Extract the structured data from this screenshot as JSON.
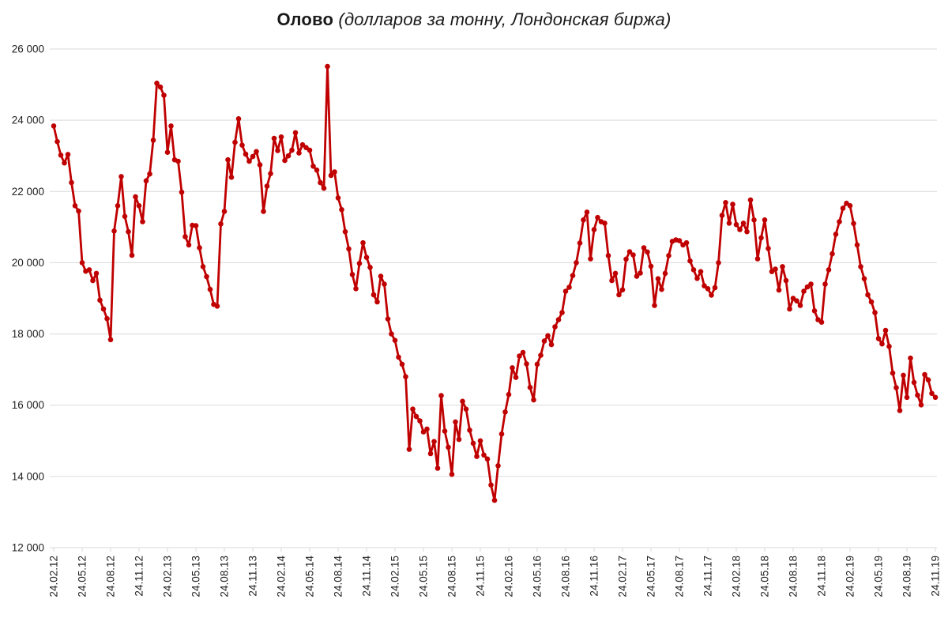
{
  "title": {
    "main": "Олово",
    "subtitle": " (долларов за тонну, Лондонская биржа)"
  },
  "chart_data": {
    "type": "line",
    "title": "Олово (долларов за тонну, Лондонская биржа)",
    "series": [
      {
        "name": "Олово",
        "color": "#C00000",
        "marker": "circle",
        "values": [
          23840,
          23400,
          23020,
          22800,
          23040,
          22250,
          21600,
          21450,
          20000,
          19760,
          19800,
          19500,
          19700,
          18950,
          18700,
          18430,
          17840,
          20890,
          21600,
          22420,
          21300,
          20870,
          20210,
          21850,
          21600,
          21150,
          22300,
          22490,
          23440,
          25040,
          24930,
          24700,
          23100,
          23840,
          22890,
          22850,
          21980,
          20730,
          20500,
          21050,
          21040,
          20420,
          19890,
          19610,
          19250,
          18830,
          18780,
          21090,
          21440,
          22890,
          22400,
          23380,
          24040,
          23300,
          23050,
          22850,
          22980,
          23120,
          22750,
          21440,
          22150,
          22500,
          23490,
          23150,
          23530,
          22870,
          23000,
          23160,
          23650,
          23080,
          23310,
          23230,
          23160,
          22710,
          22600,
          22250,
          22090,
          25510,
          22450,
          22550,
          21820,
          21490,
          20870,
          20390,
          19670,
          19270,
          19980,
          20560,
          20150,
          19870,
          19100,
          18900,
          19620,
          19400,
          18420,
          18000,
          17820,
          17350,
          17150,
          16800,
          14760,
          15890,
          15680,
          15560,
          15250,
          15330,
          14640,
          14980,
          14230,
          16270,
          15270,
          14820,
          14060,
          15530,
          15040,
          16110,
          15890,
          15300,
          14930,
          14560,
          15000,
          14600,
          14490,
          13760,
          13330,
          14300,
          15190,
          15810,
          16300,
          17050,
          16780,
          17380,
          17480,
          17160,
          16500,
          16150,
          17150,
          17400,
          17800,
          17950,
          17700,
          18200,
          18400,
          18600,
          19200,
          19310,
          19640,
          20000,
          20550,
          21200,
          21420,
          20110,
          20930,
          21270,
          21150,
          21110,
          20200,
          19500,
          19700,
          19100,
          19240,
          20100,
          20310,
          20220,
          19620,
          19710,
          20420,
          20300,
          19900,
          18800,
          19550,
          19250,
          19700,
          20200,
          20600,
          20640,
          20620,
          20500,
          20560,
          20050,
          19800,
          19560,
          19750,
          19350,
          19270,
          19090,
          19300,
          20000,
          21330,
          21690,
          21110,
          21640,
          21070,
          20930,
          21110,
          20870,
          21760,
          21200,
          20110,
          20700,
          21200,
          20400,
          19750,
          19820,
          19230,
          19890,
          19500,
          18700,
          19000,
          18930,
          18800,
          19200,
          19320,
          19400,
          18650,
          18400,
          18330,
          19400,
          19800,
          20250,
          20800,
          21150,
          21530,
          21670,
          21600,
          21100,
          20500,
          19890,
          19550,
          19100,
          18900,
          18600,
          17870,
          17720,
          18100,
          17650,
          16900,
          16490,
          15850,
          16840,
          16220,
          17320,
          16640,
          16280,
          16010,
          16860,
          16710,
          16330,
          16220
        ]
      }
    ],
    "x_tick_labels": [
      "24.02.12",
      "24.05.12",
      "24.08.12",
      "24.11.12",
      "24.02.13",
      "24.05.13",
      "24.08.13",
      "24.11.13",
      "24.02.14",
      "24.05.14",
      "24.08.14",
      "24.11.14",
      "24.02.15",
      "24.05.15",
      "24.08.15",
      "24.11.15",
      "24.02.16",
      "24.05.16",
      "24.08.16",
      "24.11.16",
      "24.02.17",
      "24.05.17",
      "24.08.17",
      "24.11.17",
      "24.02.18",
      "24.05.18",
      "24.08.18",
      "24.11.18",
      "24.02.19",
      "24.05.19",
      "24.08.19",
      "24.11.19"
    ],
    "y_ticks": [
      {
        "value": 26000,
        "label": "26 000"
      },
      {
        "value": 24000,
        "label": "24 000"
      },
      {
        "value": 22000,
        "label": "22 000"
      },
      {
        "value": 20000,
        "label": "20 000"
      },
      {
        "value": 18000,
        "label": "18 000"
      },
      {
        "value": 16000,
        "label": "16 000"
      },
      {
        "value": 14000,
        "label": "14 000"
      },
      {
        "value": 12000,
        "label": "12 000"
      }
    ],
    "ylim": [
      12000,
      26000
    ],
    "grid": "horizontal",
    "gridline_color": "#d9d9d9",
    "axis_text_color": "#1f1f1f",
    "background_color": "#ffffff",
    "legend_position": "none"
  }
}
